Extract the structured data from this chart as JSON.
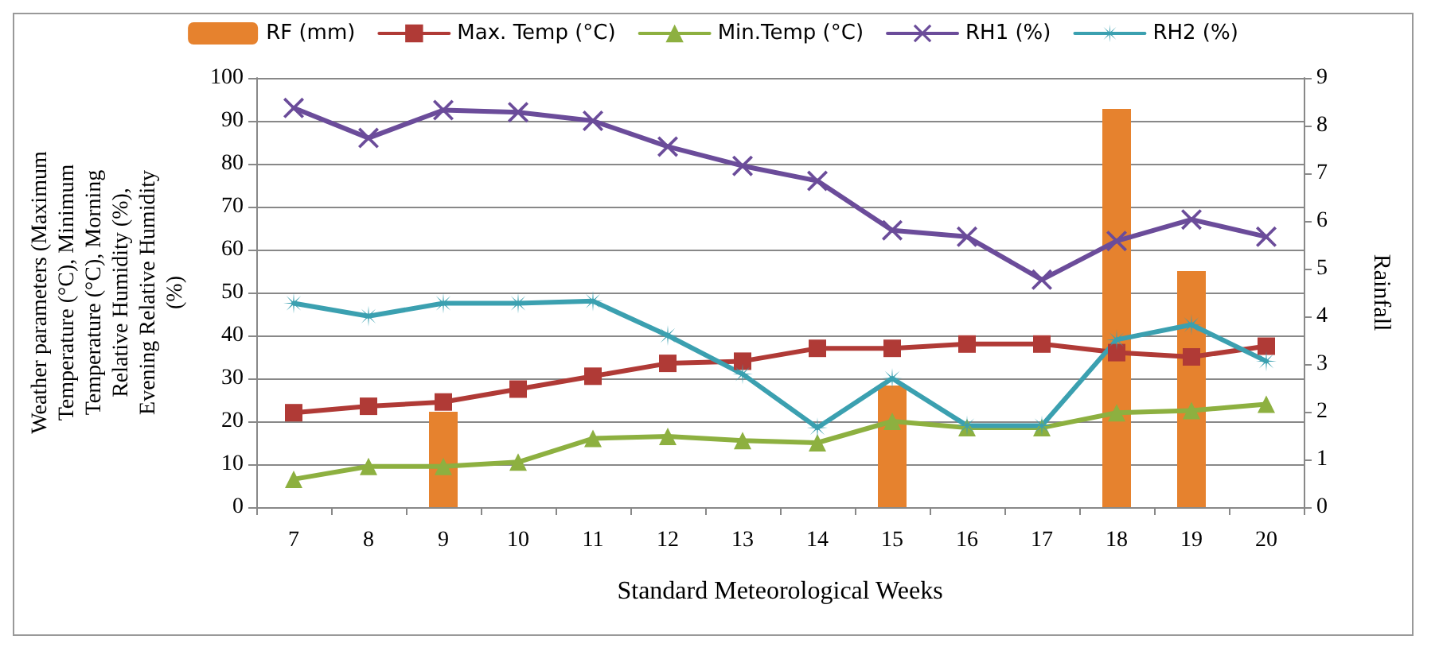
{
  "chart_data": {
    "type": "line",
    "categories": [
      "7",
      "8",
      "9",
      "10",
      "11",
      "12",
      "13",
      "14",
      "15",
      "16",
      "17",
      "18",
      "19",
      "20"
    ],
    "xlabel": "Standard Meteorological Weeks",
    "ylabel": "Weather parameters (Maximum Temperature (°C), Minimum Temperature (°C), Morning Relative Humidity (%), Evening Relative Humidity (%)",
    "y2label": "Rainfall",
    "ylim": [
      0,
      100
    ],
    "yticks": [
      0,
      10,
      20,
      30,
      40,
      50,
      60,
      70,
      80,
      90,
      100
    ],
    "y2lim": [
      0,
      9
    ],
    "y2ticks": [
      0,
      1,
      2,
      3,
      4,
      5,
      6,
      7,
      8,
      9
    ],
    "grid": "y",
    "legend": "top",
    "series": [
      {
        "name": "RF (mm)",
        "type": "bar",
        "axis": "y2",
        "color": "#e6822e",
        "values": [
          null,
          null,
          2.0,
          null,
          null,
          null,
          null,
          null,
          2.55,
          null,
          null,
          8.35,
          4.95,
          null
        ]
      },
      {
        "name": "Max. Temp (°C)",
        "marker": "square",
        "color": "#b03a36",
        "values": [
          22,
          23.5,
          24.5,
          27.5,
          30.5,
          33.5,
          34,
          37,
          37,
          38,
          38,
          36,
          35,
          37.5
        ]
      },
      {
        "name": "Min.Temp (°C)",
        "marker": "triangle",
        "color": "#8db040",
        "values": [
          6.5,
          9.5,
          9.5,
          10.5,
          16,
          16.5,
          15.5,
          15,
          20,
          18.5,
          18.5,
          22,
          22.5,
          24
        ]
      },
      {
        "name": "RH1 (%)",
        "marker": "cross",
        "color": "#6b4c9a",
        "values": [
          93,
          86,
          92.5,
          92,
          90,
          84,
          79.5,
          76,
          64.5,
          63,
          53,
          62,
          67,
          63
        ]
      },
      {
        "name": "RH2 (%)",
        "marker": "star",
        "color": "#3ba0b0",
        "values": [
          47.5,
          44.5,
          47.5,
          47.5,
          48,
          40,
          31,
          18.5,
          30,
          19,
          19,
          39,
          42.5,
          34
        ]
      }
    ]
  }
}
